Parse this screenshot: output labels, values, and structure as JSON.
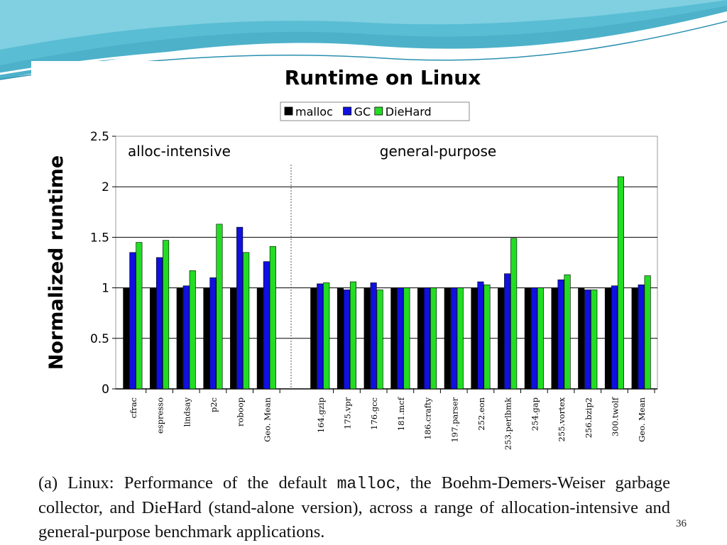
{
  "slide": {
    "page_number": "36",
    "caption": {
      "part1": "(a) Linux: Performance of the default ",
      "code": "malloc",
      "part2": ", the Boehm-Demers-Weiser garbage collector, and DieHard (stand-alone version), across a range of allocation-intensive and general-purpose benchmark applications."
    }
  },
  "colors": {
    "malloc": "#000000",
    "GC": "#1010e0",
    "DieHard": "#22dd22",
    "theme_wave": "#3aa9c4"
  },
  "chart_data": {
    "type": "bar",
    "title": "Runtime on Linux",
    "ylabel": "Normalized runtime",
    "xlabel": "",
    "ylim": [
      0,
      2.5
    ],
    "yticks": [
      "0",
      "0.5",
      "1",
      "1.5",
      "2",
      "2.5"
    ],
    "grid": true,
    "legend_position": "top-center",
    "groups": [
      {
        "label": "alloc-intensive",
        "start": 0,
        "end": 5
      },
      {
        "label": "general-purpose",
        "start": 6,
        "end": 18
      }
    ],
    "categories": [
      "cfrac",
      "espresso",
      "lindsay",
      "p2c",
      "roboop",
      "Geo. Mean",
      "164.gzip",
      "175.vpr",
      "176.gcc",
      "181.mcf",
      "186.crafty",
      "197.parser",
      "252.eon",
      "253.perlbmk",
      "254.gap",
      "255.vortex",
      "256.bzip2",
      "300.twolf",
      "Geo. Mean"
    ],
    "series": [
      {
        "name": "malloc",
        "values": [
          1,
          1,
          1,
          1,
          1,
          1,
          1,
          1,
          1,
          1,
          1,
          1,
          1,
          1,
          1,
          1,
          1,
          1,
          1
        ]
      },
      {
        "name": "GC",
        "values": [
          1.35,
          1.3,
          1.02,
          1.1,
          1.6,
          1.26,
          1.04,
          0.98,
          1.05,
          1.0,
          1.0,
          1.0,
          1.06,
          1.14,
          1.0,
          1.08,
          0.98,
          1.02,
          1.03
        ]
      },
      {
        "name": "DieHard",
        "values": [
          1.45,
          1.47,
          1.17,
          1.63,
          1.35,
          1.41,
          1.05,
          1.06,
          0.98,
          1.0,
          1.0,
          1.0,
          1.03,
          1.49,
          1.0,
          1.13,
          0.98,
          2.1,
          1.12
        ]
      }
    ]
  }
}
